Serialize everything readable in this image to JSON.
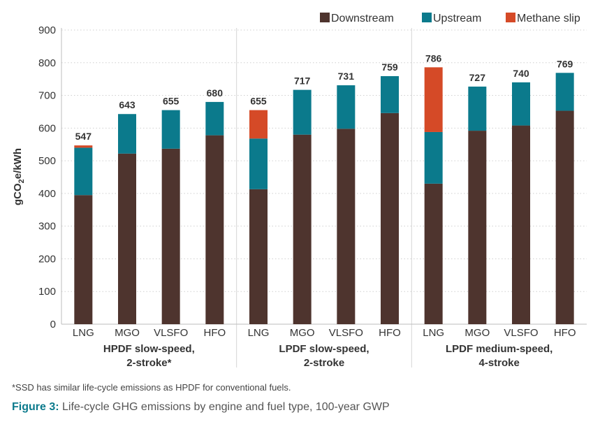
{
  "chart_data": {
    "type": "bar",
    "stacked": true,
    "ylabel_main": "gCO",
    "ylabel_sub": "2",
    "ylabel_rest": "e/kWh",
    "ylim": [
      0,
      900
    ],
    "yticks": [
      0,
      100,
      200,
      300,
      400,
      500,
      600,
      700,
      800,
      900
    ],
    "grid": true,
    "legend_position": "top-right",
    "groups": [
      {
        "label_line1": "HPDF slow-speed,",
        "label_line2": "2-stroke*"
      },
      {
        "label_line1": "LPDF slow-speed,",
        "label_line2": "2-stroke"
      },
      {
        "label_line1": "LPDF medium-speed,",
        "label_line2": "4-stroke"
      }
    ],
    "categories": [
      "LNG",
      "MGO",
      "VLSFO",
      "HFO",
      "LNG",
      "MGO",
      "VLSFO",
      "HFO",
      "LNG",
      "MGO",
      "VLSFO",
      "HFO"
    ],
    "group_index": [
      0,
      0,
      0,
      0,
      1,
      1,
      1,
      1,
      2,
      2,
      2,
      2
    ],
    "series": [
      {
        "name": "Downstream",
        "color": "#4e342e",
        "values": [
          395,
          522,
          537,
          578,
          413,
          580,
          598,
          646,
          430,
          592,
          608,
          653
        ]
      },
      {
        "name": "Upstream",
        "color": "#0b7a8c",
        "values": [
          145,
          121,
          118,
          102,
          155,
          137,
          133,
          113,
          158,
          135,
          132,
          116
        ]
      },
      {
        "name": "Methane slip",
        "color": "#d54a27",
        "values": [
          7,
          0,
          0,
          0,
          87,
          0,
          0,
          0,
          198,
          0,
          0,
          0
        ]
      }
    ],
    "totals": [
      "547",
      "643",
      "655",
      "680",
      "655",
      "717",
      "731",
      "759",
      "786",
      "727",
      "740",
      "769"
    ]
  },
  "footnote": "*SSD has similar life-cycle emissions as HPDF for conventional fuels.",
  "caption": {
    "label": "Figure 3:",
    "text": " Life-cycle GHG emissions by engine and fuel type, 100-year GWP"
  }
}
